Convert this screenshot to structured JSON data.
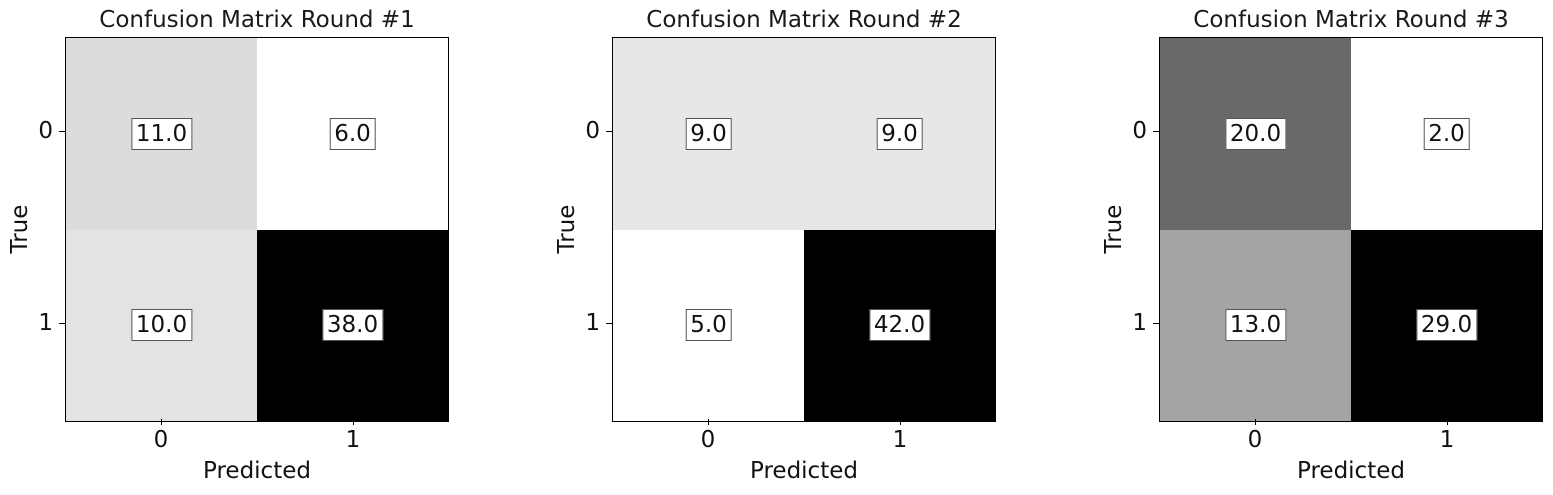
{
  "chart_data": [
    {
      "type": "heatmap",
      "title": "Confusion Matrix Round #1",
      "xlabel": "Predicted",
      "ylabel": "True",
      "x_ticks": [
        "0",
        "1"
      ],
      "y_ticks": [
        "0",
        "1"
      ],
      "values": [
        [
          11.0,
          6.0
        ],
        [
          10.0,
          38.0
        ]
      ],
      "cell_labels": [
        [
          "11.0",
          "6.0"
        ],
        [
          "10.0",
          "38.0"
        ]
      ],
      "colormap": "greys"
    },
    {
      "type": "heatmap",
      "title": "Confusion Matrix Round #2",
      "xlabel": "Predicted",
      "ylabel": "True",
      "x_ticks": [
        "0",
        "1"
      ],
      "y_ticks": [
        "0",
        "1"
      ],
      "values": [
        [
          9.0,
          9.0
        ],
        [
          5.0,
          42.0
        ]
      ],
      "cell_labels": [
        [
          "9.0",
          "9.0"
        ],
        [
          "5.0",
          "42.0"
        ]
      ],
      "colormap": "greys"
    },
    {
      "type": "heatmap",
      "title": "Confusion Matrix Round #3",
      "xlabel": "Predicted",
      "ylabel": "True",
      "x_ticks": [
        "0",
        "1"
      ],
      "y_ticks": [
        "0",
        "1"
      ],
      "values": [
        [
          20.0,
          2.0
        ],
        [
          13.0,
          29.0
        ]
      ],
      "cell_labels": [
        [
          "20.0",
          "2.0"
        ],
        [
          "13.0",
          "29.0"
        ]
      ],
      "colormap": "greys"
    }
  ]
}
